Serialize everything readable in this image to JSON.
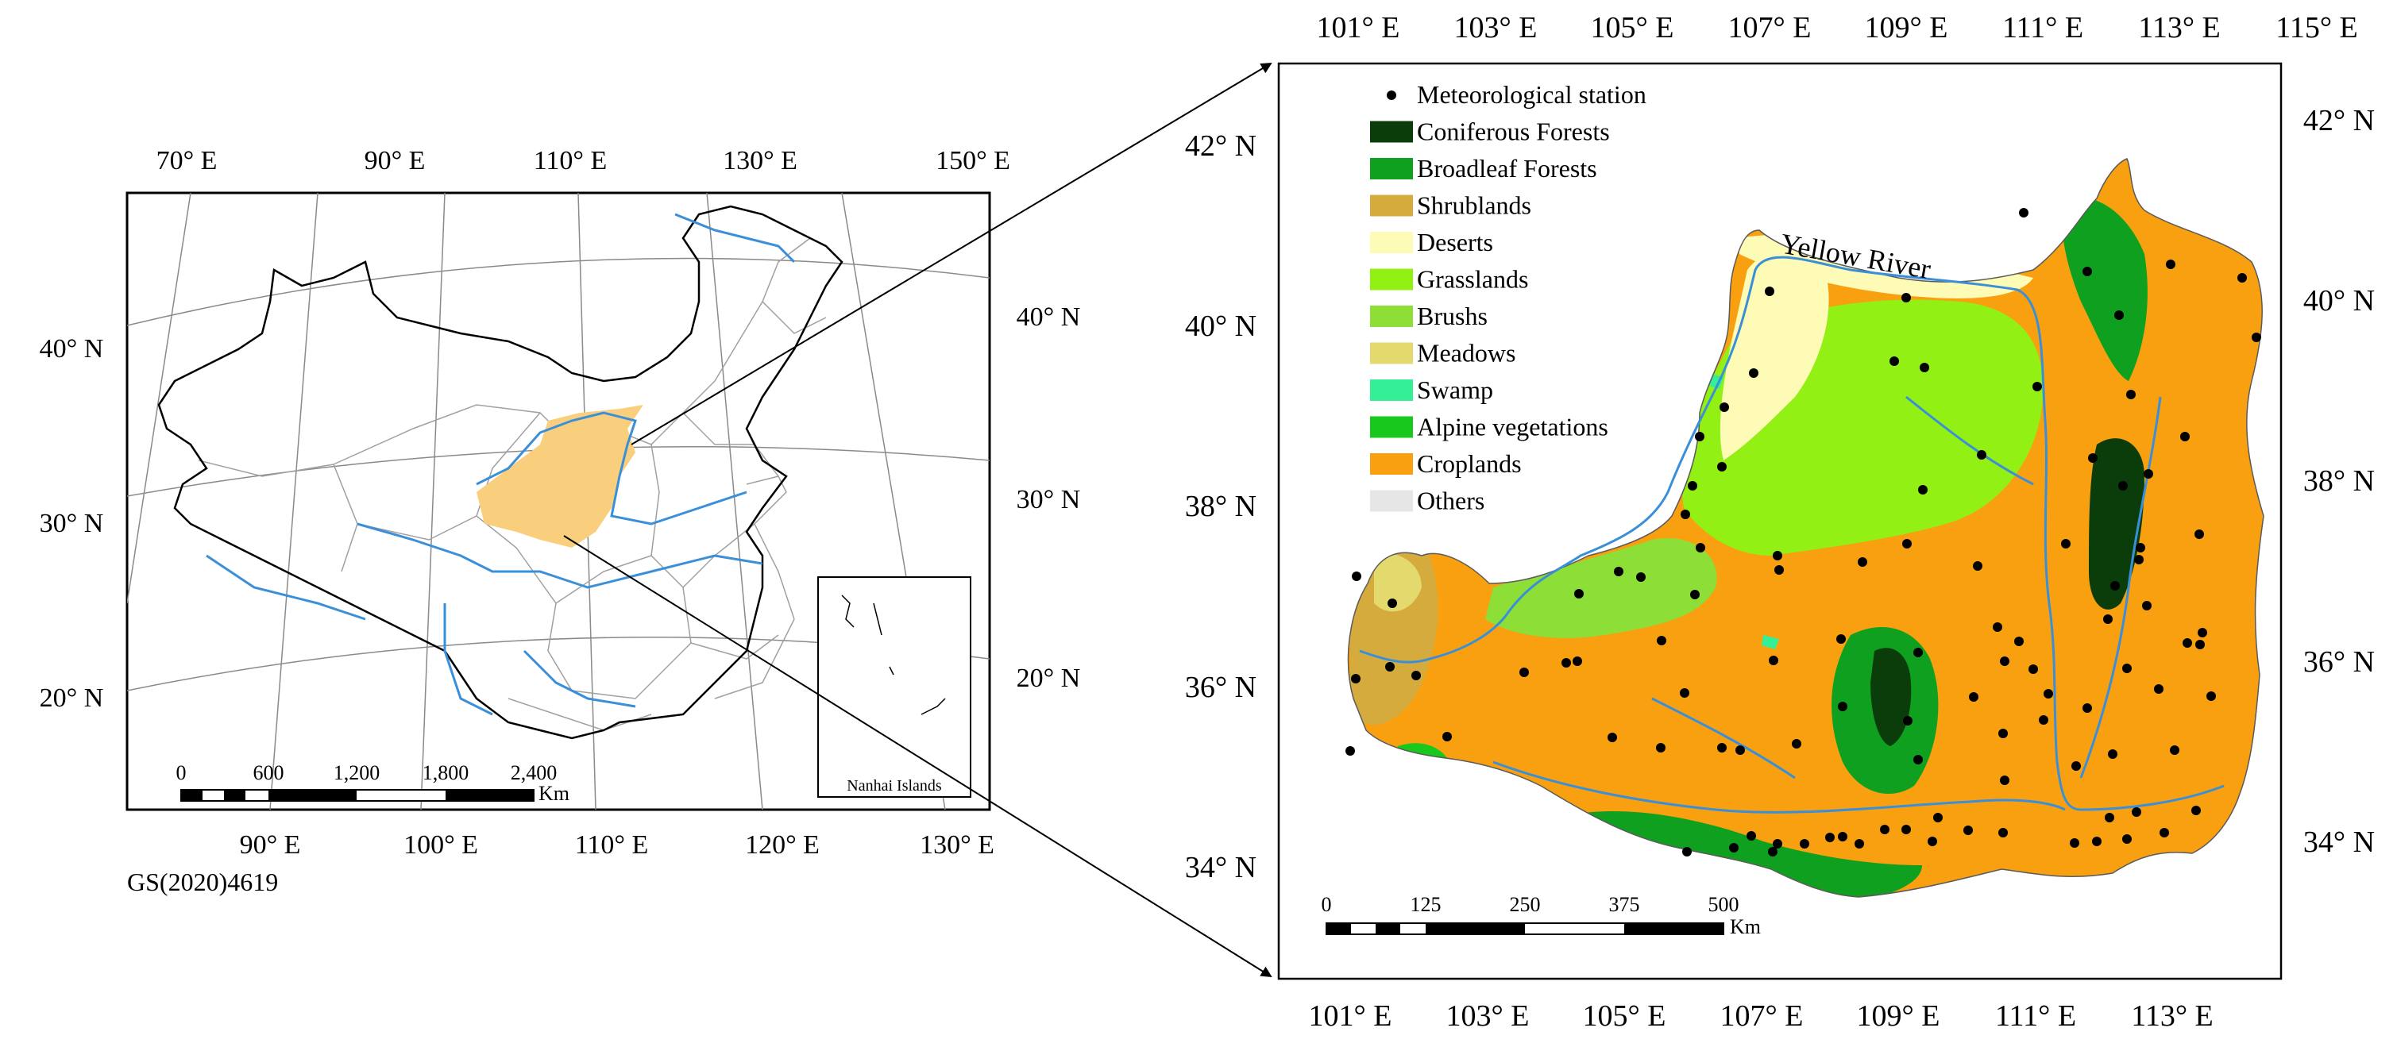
{
  "left_map": {
    "top_lon_labels": [
      "70° E",
      "90° E",
      "110° E",
      "130° E",
      "150° E"
    ],
    "bottom_lon_labels": [
      "90° E",
      "100° E",
      "110° E",
      "120° E",
      "130° E"
    ],
    "left_lat_labels": [
      "40° N",
      "30° N",
      "20° N"
    ],
    "right_lat_labels": [
      "40° N",
      "30° N",
      "20° N"
    ],
    "scale_bar": {
      "ticks": [
        "0",
        "600",
        "1,200",
        "1,800",
        "2,400"
      ],
      "unit": "Km"
    },
    "inset_label": "Nanhai Islands",
    "map_code": "GS(2020)4619",
    "colors": {
      "river": "#3a8fd8",
      "study_area": "#f9cf7e",
      "boundary": "#9a9a9a"
    }
  },
  "right_map": {
    "top_lon_labels": [
      "101° E",
      "103° E",
      "105° E",
      "107° E",
      "109° E",
      "111° E",
      "113° E",
      "115° E"
    ],
    "bottom_lon_labels": [
      "101° E",
      "103° E",
      "105° E",
      "107° E",
      "109° E",
      "111° E",
      "113° E"
    ],
    "left_lat_labels": [
      "42° N",
      "40° N",
      "38° N",
      "36° N",
      "34° N"
    ],
    "right_lat_labels": [
      "42° N",
      "40° N",
      "38° N",
      "36° N",
      "34° N"
    ],
    "river_label": "Yellow River",
    "legend": [
      {
        "label": "Meteorological station",
        "kind": "point",
        "color": "#000000"
      },
      {
        "label": "Coniferous Forests",
        "kind": "swatch",
        "color": "#0a3d0a"
      },
      {
        "label": "Broadleaf Forests",
        "kind": "swatch",
        "color": "#10a020"
      },
      {
        "label": "Shrublands",
        "kind": "swatch",
        "color": "#d4ab3c"
      },
      {
        "label": "Deserts",
        "kind": "swatch",
        "color": "#fdfbb6"
      },
      {
        "label": "Grasslands",
        "kind": "swatch",
        "color": "#92f014"
      },
      {
        "label": "Brushs",
        "kind": "swatch",
        "color": "#8ede38"
      },
      {
        "label": "Meadows",
        "kind": "swatch",
        "color": "#e4d96c"
      },
      {
        "label": "Swamp",
        "kind": "swatch",
        "color": "#34ef96"
      },
      {
        "label": "Alpine vegetations",
        "kind": "swatch",
        "color": "#18c81c"
      },
      {
        "label": "Croplands",
        "kind": "swatch",
        "color": "#f8a010"
      },
      {
        "label": "Others",
        "kind": "swatch",
        "color": "#e6e6e6"
      }
    ],
    "scale_bar": {
      "ticks": [
        "0",
        "125",
        "250",
        "375",
        "500"
      ],
      "unit": "Km"
    },
    "colors": {
      "river": "#3a8fd8"
    }
  }
}
